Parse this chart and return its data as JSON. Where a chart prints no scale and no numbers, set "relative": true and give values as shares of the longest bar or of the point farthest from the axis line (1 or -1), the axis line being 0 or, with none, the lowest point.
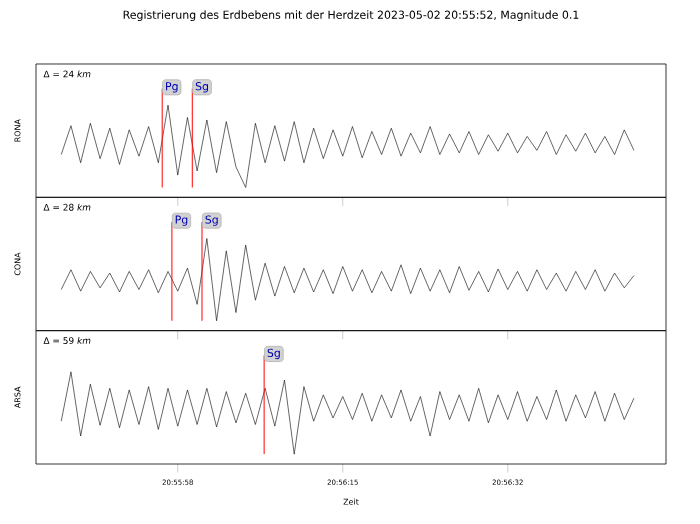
{
  "chart_data": [
    {
      "type": "line",
      "title": "Registrierung des Erdbebens mit der Herdzeit 2023-05-02 20:55:52, Magnitude 0.1",
      "ylabel": "RONA",
      "relative": true,
      "tick_labels": false,
      "color": "#000000",
      "annotations": [
        "Δ = 24 *km*"
      ],
      "xlim": [
        20.928722,
        20.94675
      ],
      "ref_lines": [
        {
          "axis": "x",
          "value": 20.932333,
          "label": "Pg",
          "color": "#ff0000"
        },
        {
          "axis": "x",
          "value": 20.933194,
          "label": "Sg",
          "color": "#ff0000"
        }
      ],
      "x": [
        20.929444,
        20.929722,
        20.93,
        20.930278,
        20.930556,
        20.930833,
        20.931111,
        20.931389,
        20.931667,
        20.931944,
        20.932222,
        20.9325,
        20.932778,
        20.933056,
        20.933333,
        20.933611,
        20.933889,
        20.934167,
        20.934444,
        20.934722,
        20.935,
        20.935278,
        20.935556,
        20.935833,
        20.936111,
        20.936389,
        20.936667,
        20.936944,
        20.937222,
        20.9375,
        20.937778,
        20.938056,
        20.938333,
        20.938611,
        20.938889,
        20.939167,
        20.939444,
        20.939722,
        20.94,
        20.940278,
        20.940556,
        20.940833,
        20.941111,
        20.941389,
        20.941667,
        20.941944,
        20.942222,
        20.9425,
        20.942778,
        20.943056,
        20.943333,
        20.943611,
        20.943889,
        20.944167,
        20.944444,
        20.944722,
        20.945,
        20.945278,
        20.945556,
        20.945833
      ],
      "values": [
        0.4,
        0.75,
        0.3,
        0.78,
        0.35,
        0.72,
        0.28,
        0.7,
        0.38,
        0.74,
        0.3,
        1.0,
        0.15,
        0.85,
        0.2,
        0.82,
        0.18,
        0.8,
        0.25,
        0.0,
        0.78,
        0.3,
        0.75,
        0.32,
        0.8,
        0.3,
        0.72,
        0.35,
        0.7,
        0.38,
        0.74,
        0.36,
        0.68,
        0.4,
        0.72,
        0.38,
        0.66,
        0.42,
        0.74,
        0.4,
        0.65,
        0.42,
        0.68,
        0.4,
        0.64,
        0.44,
        0.66,
        0.42,
        0.62,
        0.45,
        0.68,
        0.4,
        0.64,
        0.44,
        0.66,
        0.42,
        0.62,
        0.4,
        0.7,
        0.45
      ]
    },
    {
      "type": "line",
      "ylabel": "CONA",
      "relative": true,
      "tick_labels": false,
      "color": "#000000",
      "annotations": [
        "Δ = 28 *km*"
      ],
      "xlim": [
        20.928722,
        20.94675
      ],
      "ref_lines": [
        {
          "axis": "x",
          "value": 20.932611,
          "label": "Pg",
          "color": "#ff0000"
        },
        {
          "axis": "x",
          "value": 20.933472,
          "label": "Sg",
          "color": "#ff0000"
        }
      ],
      "x": [
        20.929444,
        20.929722,
        20.93,
        20.930278,
        20.930556,
        20.930833,
        20.931111,
        20.931389,
        20.931667,
        20.931944,
        20.932222,
        20.9325,
        20.932778,
        20.933056,
        20.933333,
        20.933611,
        20.933889,
        20.934167,
        20.934444,
        20.934722,
        20.935,
        20.935278,
        20.935556,
        20.935833,
        20.936111,
        20.936389,
        20.936667,
        20.936944,
        20.937222,
        20.9375,
        20.937778,
        20.938056,
        20.938333,
        20.938611,
        20.938889,
        20.939167,
        20.939444,
        20.939722,
        20.94,
        20.940278,
        20.940556,
        20.940833,
        20.941111,
        20.941389,
        20.941667,
        20.941944,
        20.942222,
        20.9425,
        20.942778,
        20.943056,
        20.943333,
        20.943611,
        20.943889,
        20.944167,
        20.944444,
        20.944722,
        20.945,
        20.945278,
        20.945556,
        20.945833
      ],
      "values": [
        0.38,
        0.62,
        0.36,
        0.6,
        0.4,
        0.58,
        0.35,
        0.6,
        0.38,
        0.62,
        0.34,
        0.6,
        0.36,
        0.64,
        0.2,
        1.0,
        0.0,
        0.85,
        0.1,
        0.92,
        0.25,
        0.7,
        0.3,
        0.66,
        0.34,
        0.64,
        0.35,
        0.62,
        0.33,
        0.66,
        0.36,
        0.62,
        0.34,
        0.6,
        0.36,
        0.68,
        0.33,
        0.64,
        0.36,
        0.62,
        0.34,
        0.66,
        0.37,
        0.6,
        0.35,
        0.63,
        0.38,
        0.6,
        0.36,
        0.62,
        0.38,
        0.58,
        0.36,
        0.6,
        0.38,
        0.62,
        0.36,
        0.58,
        0.4,
        0.55
      ]
    },
    {
      "type": "line",
      "ylabel": "ARSA",
      "xlabel": "Zeit",
      "relative": true,
      "color": "#000000",
      "annotations": [
        "Δ = 59 *km*"
      ],
      "xlim": [
        20.928722,
        20.94675
      ],
      "xticks": [
        {
          "value": 20.932778,
          "label": "20:55:58"
        },
        {
          "value": 20.9375,
          "label": "20:56:15"
        },
        {
          "value": 20.942222,
          "label": "20:56:32"
        }
      ],
      "ref_lines": [
        {
          "axis": "x",
          "value": 20.93525,
          "label": "Sg",
          "color": "#ff0000"
        }
      ],
      "x": [
        20.929444,
        20.929722,
        20.93,
        20.930278,
        20.930556,
        20.930833,
        20.931111,
        20.931389,
        20.931667,
        20.931944,
        20.932222,
        20.9325,
        20.932778,
        20.933056,
        20.933333,
        20.933611,
        20.933889,
        20.934167,
        20.934444,
        20.934722,
        20.935,
        20.935278,
        20.935556,
        20.935833,
        20.936111,
        20.936389,
        20.936667,
        20.936944,
        20.937222,
        20.9375,
        20.937778,
        20.938056,
        20.938333,
        20.938611,
        20.938889,
        20.939167,
        20.939444,
        20.939722,
        20.94,
        20.940278,
        20.940556,
        20.940833,
        20.941111,
        20.941389,
        20.941667,
        20.941944,
        20.942222,
        20.9425,
        20.942778,
        20.943056,
        20.943333,
        20.943611,
        20.943889,
        20.944167,
        20.944444,
        20.944722,
        20.945,
        20.945278,
        20.945556,
        20.945833
      ],
      "values": [
        0.4,
        1.0,
        0.22,
        0.85,
        0.35,
        0.8,
        0.32,
        0.78,
        0.36,
        0.82,
        0.3,
        0.8,
        0.34,
        0.78,
        0.36,
        0.8,
        0.33,
        0.76,
        0.38,
        0.74,
        0.36,
        0.8,
        0.34,
        0.9,
        0.0,
        0.82,
        0.4,
        0.72,
        0.44,
        0.7,
        0.42,
        0.74,
        0.4,
        0.72,
        0.44,
        0.78,
        0.4,
        0.7,
        0.22,
        0.76,
        0.42,
        0.72,
        0.4,
        0.8,
        0.38,
        0.72,
        0.42,
        0.76,
        0.4,
        0.7,
        0.42,
        0.78,
        0.4,
        0.72,
        0.44,
        0.76,
        0.4,
        0.74,
        0.42,
        0.68
      ]
    }
  ]
}
